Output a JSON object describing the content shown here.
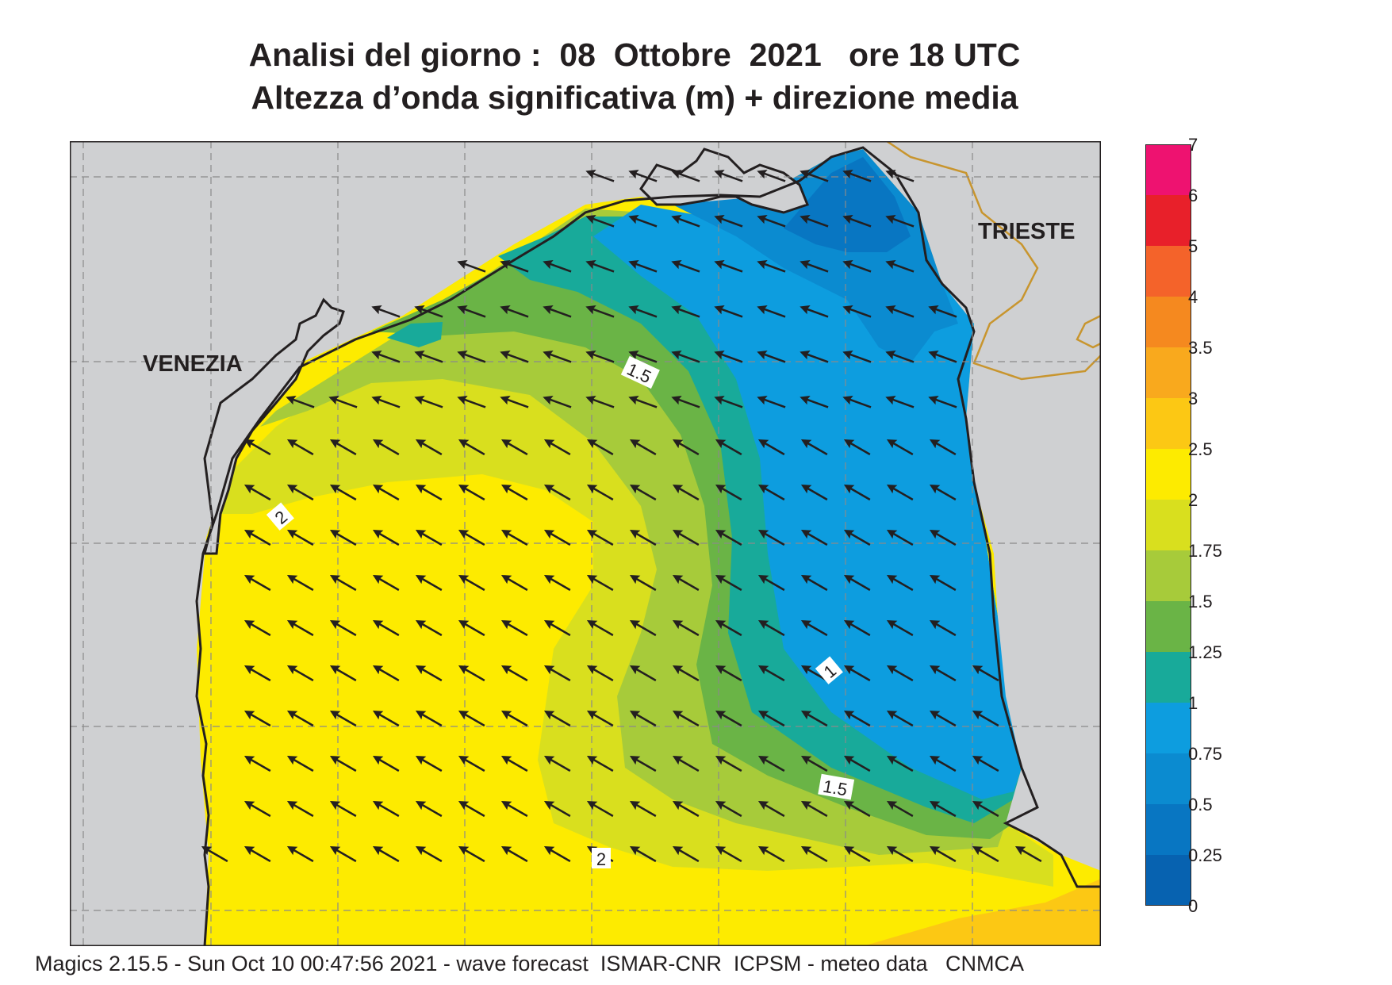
{
  "title": {
    "line1": "Analisi del giorno :  08  Ottobre  2021   ore 18 UTC",
    "line2": "Altezza d’onda significativa (m) + direzione media"
  },
  "cities": {
    "venezia": "VENEZIA",
    "trieste": "TRIESTE"
  },
  "contour_labels": {
    "c1_5_north": "1.5",
    "c1": "1",
    "c2_west": "2",
    "c1_5_south": "1.5",
    "c2_south": "2"
  },
  "colorbar": {
    "labels": [
      "7",
      "6",
      "5",
      "4",
      "3.5",
      "3",
      "2.5",
      "2",
      "1.75",
      "1.5",
      "1.25",
      "1",
      "0.75",
      "0.5",
      "0.25",
      "0"
    ],
    "colors": [
      "#ee1270",
      "#e8202a",
      "#f4632a",
      "#f5891f",
      "#f9a91d",
      "#fcc814",
      "#fdeb00",
      "#d9df1e",
      "#a7cb3a",
      "#6ab446",
      "#18aa9a",
      "#0d9ddf",
      "#0b8bd0",
      "#0876c2",
      "#0762b0"
    ]
  },
  "wave_field": {
    "direction": "south-west",
    "colors": {
      "land": "#cfd0d2",
      "coast": "#231f20",
      "border": "#c8952e",
      "grid": "#8a8a8a",
      "arrow": "#231f20"
    }
  },
  "footer": "Magics 2.15.5 - Sun Oct 10 00:47:56 2021 - wave forecast  ISMAR-CNR  ICPSM - meteo data   CNMCA"
}
